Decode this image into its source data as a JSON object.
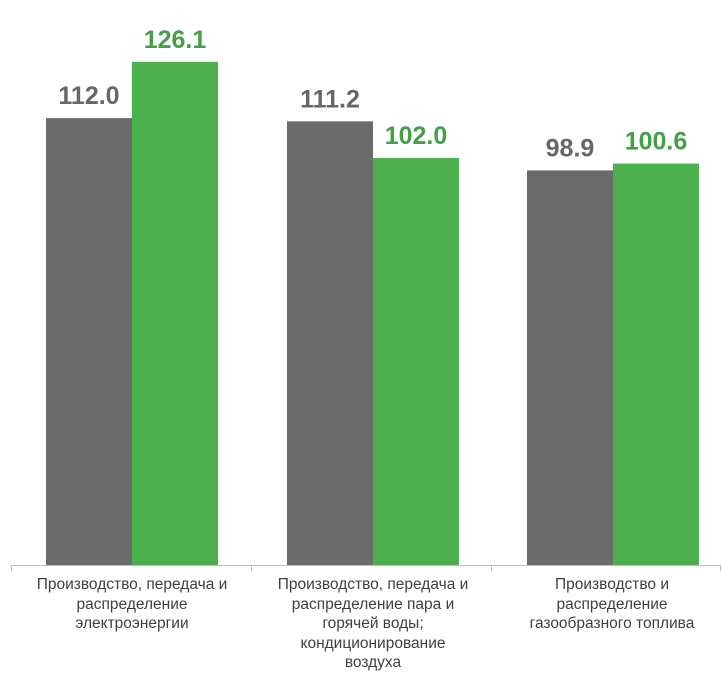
{
  "chart_data": {
    "type": "bar",
    "title": "",
    "xlabel": "",
    "ylabel": "",
    "ylim": [
      0,
      135
    ],
    "grid": false,
    "legend": "none",
    "categories": [
      "Производство, передача и распределение электроэнергии",
      "Производство, передача и распределение пара и горячей воды; кондиционирование воздуха",
      "Производство и распределение газообразного топлива"
    ],
    "category_lines": [
      [
        "Производство, передача и",
        "распределение",
        "электроэнергии"
      ],
      [
        "Производство, передача и",
        "распределение пара и",
        "горячей воды;",
        "кондиционирование",
        "воздуха"
      ],
      [
        "Производство и",
        "распределение",
        "газообразного топлива"
      ]
    ],
    "series": [
      {
        "values": [
          112.0,
          111.2,
          98.9
        ],
        "labels": [
          "112.0",
          "111.2",
          "98.9"
        ],
        "color": "#6b6b6b",
        "label_color": "#666666"
      },
      {
        "values": [
          126.1,
          102.0,
          100.6
        ],
        "labels": [
          "126.1",
          "102.0",
          "100.6"
        ],
        "color": "#4caf50",
        "label_color": "#43a047"
      }
    ]
  }
}
